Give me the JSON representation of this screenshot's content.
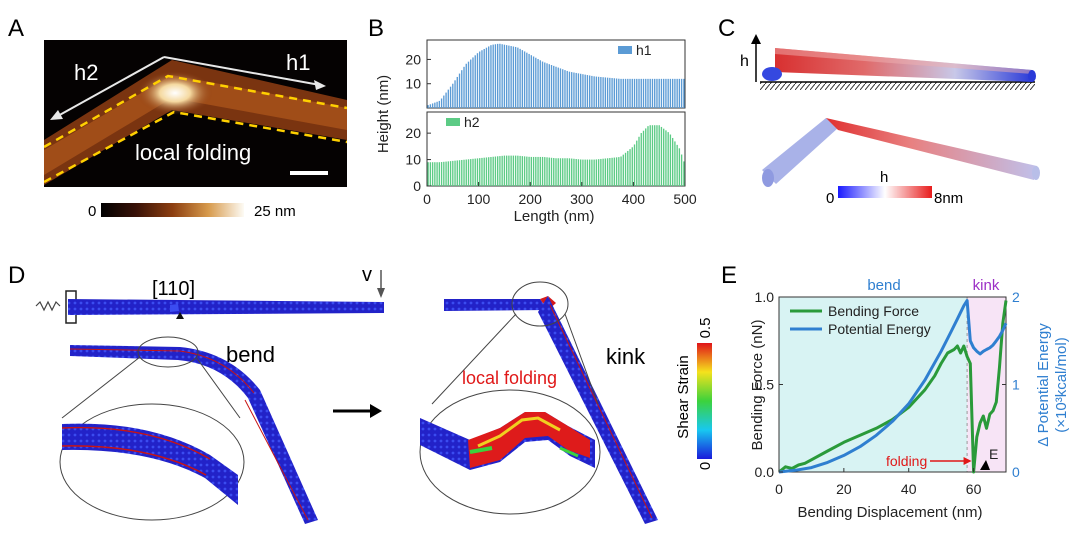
{
  "panel_letters": {
    "a": "A",
    "b": "B",
    "c": "C",
    "d": "D",
    "e": "E"
  },
  "panelA": {
    "h1": "h1",
    "h2": "h2",
    "annotation": "local folding",
    "cbar_min": "0",
    "cbar_max": "25 nm"
  },
  "panelC": {
    "h_axis": "h",
    "cbar_label": "h",
    "cbar_min": "0",
    "cbar_max": "8nm"
  },
  "panelD": {
    "direction": "[110]",
    "velocity": "v",
    "bend": "bend",
    "kink": "kink",
    "annotation": "local folding",
    "cbar_title": "Shear Strain",
    "cbar_min": "0",
    "cbar_max": "0.5"
  },
  "panelE": {
    "region_bend": "bend",
    "region_kink": "kink",
    "folding_label": "folding",
    "marker_label": "E"
  },
  "colors": {
    "blue_series": "#5b9bd5",
    "green_series": "#5ccb85",
    "force_line": "#2a9a3a",
    "energy_line": "#2f7fd0",
    "bend_bg": "#d8f3f3",
    "kink_bg": "#f7e4f6",
    "kink_text": "#9b2fc6",
    "bend_text": "#2f7fd0"
  },
  "chart_data": [
    {
      "id": "B",
      "type": "bar",
      "xlabel": "Length (nm)",
      "ylabel": "Height (nm)",
      "xlim": [
        0,
        500
      ],
      "xticks": [
        "0",
        "100",
        "200",
        "300",
        "400",
        "500"
      ],
      "panels": [
        {
          "name": "h1",
          "ylim": [
            0,
            28
          ],
          "yticks": [
            "10",
            "20"
          ],
          "x": [
            0,
            25,
            50,
            75,
            100,
            125,
            140,
            175,
            200,
            225,
            250,
            275,
            300,
            325,
            350,
            375,
            400,
            425,
            450,
            475,
            500
          ],
          "y": [
            1,
            3,
            10,
            18,
            23,
            26,
            26.5,
            25,
            22,
            19,
            17,
            15,
            14,
            13,
            12.5,
            12,
            12,
            12,
            12,
            12,
            12
          ]
        },
        {
          "name": "h2",
          "ylim": [
            0,
            28
          ],
          "yticks": [
            "0",
            "10",
            "20"
          ],
          "x": [
            0,
            25,
            50,
            75,
            100,
            125,
            150,
            175,
            200,
            225,
            250,
            275,
            300,
            325,
            350,
            375,
            400,
            415,
            430,
            450,
            470,
            490,
            500
          ],
          "y": [
            9,
            9,
            9.5,
            10,
            10.5,
            11,
            11.5,
            11.5,
            11,
            11,
            10.5,
            10.5,
            10,
            10,
            10.5,
            11,
            15,
            20,
            23,
            23,
            20,
            14,
            8
          ]
        }
      ]
    },
    {
      "id": "E",
      "type": "line",
      "xlabel": "Bending Displacement (nm)",
      "ylabel": "Bending Force (nN)",
      "y2label": "Δ Potential Energy",
      "y2unit": "(×10³kcal/mol)",
      "xlim": [
        0,
        70
      ],
      "ylim": [
        0,
        1.0
      ],
      "y2lim": [
        0,
        2
      ],
      "xticks": [
        "0",
        "20",
        "40",
        "60"
      ],
      "yticks": [
        "0.0",
        "0.5",
        "1.0"
      ],
      "y2ticks": [
        "0",
        "1",
        "2"
      ],
      "legend": "top-left",
      "regions": [
        {
          "name": "bend",
          "from": 0,
          "to": 58
        },
        {
          "name": "kink",
          "from": 58,
          "to": 70
        }
      ],
      "series": [
        {
          "name": "Bending Force",
          "axis": "left",
          "x": [
            0,
            2,
            4,
            6,
            8,
            10,
            15,
            20,
            25,
            30,
            35,
            40,
            45,
            48,
            50,
            52,
            54,
            55,
            56,
            57,
            58,
            59,
            60,
            61,
            62,
            63,
            64,
            65,
            66,
            67,
            68,
            69,
            70
          ],
          "y": [
            0.0,
            0.03,
            0.02,
            0.04,
            0.05,
            0.07,
            0.12,
            0.17,
            0.21,
            0.25,
            0.3,
            0.37,
            0.47,
            0.55,
            0.62,
            0.68,
            0.7,
            0.72,
            0.68,
            0.72,
            0.66,
            0.62,
            0.0,
            0.2,
            0.28,
            0.32,
            0.25,
            0.33,
            0.35,
            0.4,
            0.6,
            0.85,
            0.98
          ]
        },
        {
          "name": "Potential Energy",
          "axis": "right",
          "x": [
            0,
            5,
            10,
            15,
            20,
            25,
            30,
            35,
            40,
            45,
            50,
            53,
            55,
            57,
            58,
            59,
            60,
            61,
            62,
            63,
            64,
            65,
            66,
            67,
            68,
            69,
            70
          ],
          "y": [
            0.0,
            0.02,
            0.05,
            0.11,
            0.19,
            0.29,
            0.42,
            0.58,
            0.78,
            1.05,
            1.38,
            1.6,
            1.75,
            1.9,
            1.96,
            1.5,
            1.42,
            1.38,
            1.35,
            1.38,
            1.4,
            1.42,
            1.45,
            1.5,
            1.55,
            1.62,
            1.7
          ]
        }
      ]
    }
  ]
}
